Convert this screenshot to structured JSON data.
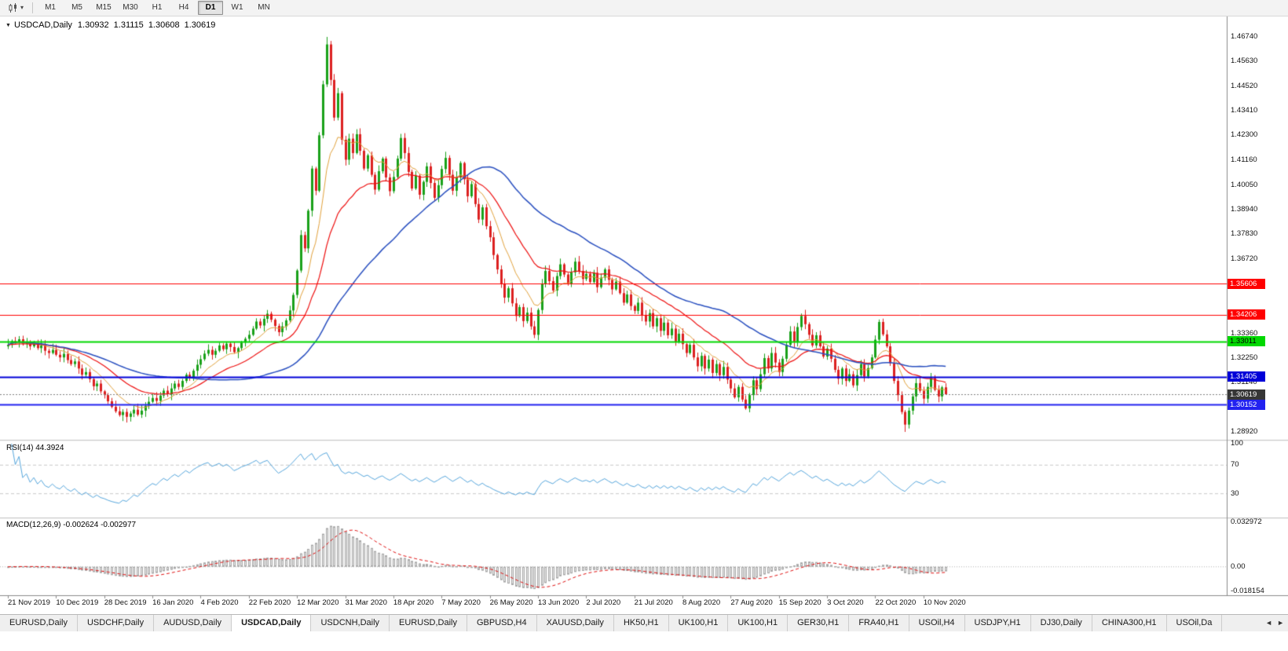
{
  "toolbar": {
    "caret": "▾",
    "timeframes": [
      {
        "label": "M1",
        "active": false
      },
      {
        "label": "M5",
        "active": false
      },
      {
        "label": "M15",
        "active": false
      },
      {
        "label": "M30",
        "active": false
      },
      {
        "label": "H1",
        "active": false
      },
      {
        "label": "H4",
        "active": false
      },
      {
        "label": "D1",
        "active": true
      },
      {
        "label": "W1",
        "active": false
      },
      {
        "label": "MN",
        "active": false
      }
    ]
  },
  "chart": {
    "title": {
      "marker": "▼",
      "symbol": "USDCAD,Daily"
    }
  },
  "chart_data": {
    "type": "candlestick",
    "symbol": "USDCAD",
    "period": "Daily",
    "last_bar": {
      "open": "1.30932",
      "high": "1.31115",
      "low": "1.30608",
      "close": "1.30619"
    },
    "y_axis": {
      "visible_min": 1.28601,
      "visible_max": 1.47519,
      "tick_labels": [
        "1.46740",
        "1.45630",
        "1.44520",
        "1.43410",
        "1.42300",
        "1.41160",
        "1.40050",
        "1.38940",
        "1.37830",
        "1.36720",
        "1.33360",
        "1.32250",
        "1.31140",
        "1.28920"
      ]
    },
    "x_axis": {
      "bars_per_tick": 13,
      "tick_labels": [
        "21 Nov 2019",
        "10 Dec 2019",
        "28 Dec 2019",
        "16 Jan 2020",
        "4 Feb 2020",
        "22 Feb 2020",
        "12 Mar 2020",
        "31 Mar 2020",
        "18 Apr 2020",
        "7 May 2020",
        "26 May 2020",
        "13 Jun 2020",
        "2 Jul 2020",
        "21 Jul 2020",
        "8 Aug 2020",
        "27 Aug 2020",
        "15 Sep 2020",
        "3 Oct 2020",
        "22 Oct 2020",
        "10 Nov 2020"
      ]
    },
    "first_open": 1.3278,
    "closes": [
      1.3285,
      1.3302,
      1.3295,
      1.331,
      1.3288,
      1.3296,
      1.3278,
      1.329,
      1.327,
      1.3282,
      1.3258,
      1.3248,
      1.3262,
      1.324,
      1.3228,
      1.3244,
      1.3216,
      1.3198,
      1.321,
      1.3178,
      1.315,
      1.3162,
      1.313,
      1.3098,
      1.311,
      1.3075,
      1.3058,
      1.303,
      1.3005,
      1.2985,
      1.2968,
      1.2982,
      1.296,
      1.2975,
      1.2992,
      1.297,
      1.2988,
      1.301,
      1.3028,
      1.3045,
      1.3032,
      1.3056,
      1.3078,
      1.3062,
      1.3088,
      1.311,
      1.3095,
      1.3122,
      1.315,
      1.3135,
      1.3168,
      1.3195,
      1.322,
      1.3245,
      1.3262,
      1.324,
      1.3258,
      1.3282,
      1.3265,
      1.329,
      1.3275,
      1.3252,
      1.327,
      1.3295,
      1.3312,
      1.333,
      1.3358,
      1.339,
      1.3372,
      1.3402,
      1.3425,
      1.3398,
      1.337,
      1.3342,
      1.3368,
      1.3395,
      1.344,
      1.351,
      1.362,
      1.378,
      1.372,
      1.389,
      1.408,
      1.398,
      1.423,
      1.446,
      1.464,
      1.448,
      1.431,
      1.442,
      1.421,
      1.412,
      1.4215,
      1.415,
      1.4235,
      1.416,
      1.408,
      1.414,
      1.4052,
      1.3985,
      1.4068,
      1.4125,
      1.404,
      1.3978,
      1.4042,
      1.4125,
      1.4218,
      1.415,
      1.4065,
      1.399,
      1.4048,
      1.3962,
      1.402,
      1.409,
      1.4015,
      1.3948,
      1.4005,
      1.4078,
      1.4128,
      1.4052,
      1.398,
      1.404,
      1.4105,
      1.4032,
      1.3955,
      1.401,
      1.392,
      1.385,
      1.3905,
      1.382,
      1.377,
      1.369,
      1.3625,
      1.356,
      1.3498,
      1.354,
      1.3472,
      1.3415,
      1.3455,
      1.3392,
      1.343,
      1.3368,
      1.333,
      1.3442,
      1.356,
      1.3618,
      1.3572,
      1.353,
      1.3595,
      1.3648,
      1.3602,
      1.3558,
      1.3612,
      1.366,
      1.3618,
      1.3582,
      1.3605,
      1.3568,
      1.361,
      1.3545,
      1.3588,
      1.3625,
      1.3578,
      1.3535,
      1.357,
      1.3518,
      1.3475,
      1.3512,
      1.346,
      1.3438,
      1.3475,
      1.3418,
      1.339,
      1.3428,
      1.3368,
      1.3405,
      1.3348,
      1.3385,
      1.3328,
      1.3358,
      1.3298,
      1.3335,
      1.3288,
      1.3248,
      1.3285,
      1.3228,
      1.3188,
      1.3235,
      1.3178,
      1.3218,
      1.3158,
      1.3198,
      1.3148,
      1.3185,
      1.3128,
      1.3088,
      1.3048,
      1.3095,
      1.3038,
      1.2998,
      1.3058,
      1.3125,
      1.3085,
      1.3152,
      1.3225,
      1.3178,
      1.3248,
      1.3205,
      1.3162,
      1.3222,
      1.3285,
      1.3345,
      1.3298,
      1.3365,
      1.3415,
      1.3378,
      1.333,
      1.3282,
      1.3328,
      1.3278,
      1.3232,
      1.3268,
      1.3222,
      1.3172,
      1.3132,
      1.3178,
      1.3122,
      1.3152,
      1.3102,
      1.3148,
      1.3198,
      1.3142,
      1.318,
      1.3228,
      1.3308,
      1.3388,
      1.3332,
      1.3278,
      1.3202,
      1.3122,
      1.3058,
      1.2982,
      1.2925,
      1.2988,
      1.3052,
      1.3112,
      1.3078,
      1.3042,
      1.3095,
      1.3135,
      1.3082,
      1.3052,
      1.3093,
      1.30619
    ],
    "wick_overrides": {
      "86": {
        "high": 1.4674
      },
      "142": {
        "low": 1.3315
      },
      "199": {
        "low": 1.2992
      },
      "242": {
        "low": 1.2892
      },
      "253": {
        "high": 1.31115,
        "low": 1.30608
      }
    },
    "candle_colors": {
      "up": "#19A119",
      "down": "#DC2020"
    },
    "horizontal_lines": [
      {
        "label": "1.35606",
        "price": 1.35606,
        "color": "#FF0000",
        "text_color": "#FFFFFF",
        "width": 1
      },
      {
        "label": "1.34206",
        "price": 1.34206,
        "color": "#FF0000",
        "text_color": "#FFFFFF",
        "width": 1
      },
      {
        "label": "1.33011",
        "price": 1.33011,
        "color": "#00D800",
        "text_color": "#000000",
        "width": 2
      },
      {
        "label": "1.31405",
        "price": 1.31405,
        "color": "#0000D8",
        "text_color": "#FFFFFF",
        "width": 2
      },
      {
        "label": "1.30152",
        "price": 1.30152,
        "color": "#2222F0",
        "text_color": "#FFFFFF",
        "width": 2
      }
    ],
    "current_price_line": {
      "label": "1.30619",
      "price": 1.30619,
      "line_color": "#808080",
      "box_color": "#363636",
      "text_color": "#FFFFFF"
    },
    "indicators": {
      "moving_averages": [
        {
          "name": "fast ema",
          "period": 10,
          "type": "ema",
          "color": "#E2A23C",
          "width": 1
        },
        {
          "name": "medium ema",
          "period": 25,
          "type": "ema",
          "color": "#EE1111",
          "width": 1.2
        },
        {
          "name": "slow sma",
          "period": 50,
          "type": "sma",
          "color": "#2A50C0",
          "width": 1.5
        }
      ],
      "rsi": {
        "label": "RSI(14) 44.3924",
        "period": 14,
        "current": 44.3924,
        "scale": [
          0,
          100
        ],
        "levels": [
          70,
          30
        ],
        "axis_labels": [
          "100",
          "70",
          "30"
        ],
        "line_color": "#57A7DD",
        "level_line_color": "#C8C8C8"
      },
      "macd": {
        "label": "MACD(12,26,9) -0.002624 -0.002977",
        "fast": 12,
        "slow": 26,
        "signal": 9,
        "current_macd": -0.002624,
        "current_signal": -0.002977,
        "scale_max": 0.032972,
        "scale_min": -0.018154,
        "axis_labels": [
          "0.032972",
          "0.00",
          "-0.018154"
        ],
        "signal_color": "#E01010",
        "histogram_fill": "#ECECEC",
        "histogram_border": "#A6A6A6"
      }
    }
  },
  "tabs": {
    "scroll_left_icon": "◄",
    "scroll_right_icon": "►",
    "items": [
      {
        "label": "EURUSD,Daily",
        "active": false
      },
      {
        "label": "USDCHF,Daily",
        "active": false
      },
      {
        "label": "AUDUSD,Daily",
        "active": false
      },
      {
        "label": "USDCAD,Daily",
        "active": true
      },
      {
        "label": "USDCNH,Daily",
        "active": false
      },
      {
        "label": "EURUSD,Daily",
        "active": false
      },
      {
        "label": "GBPUSD,H4",
        "active": false
      },
      {
        "label": "XAUUSD,Daily",
        "active": false
      },
      {
        "label": "HK50,H1",
        "active": false
      },
      {
        "label": "UK100,H1",
        "active": false
      },
      {
        "label": "UK100,H1",
        "active": false
      },
      {
        "label": "GER30,H1",
        "active": false
      },
      {
        "label": "FRA40,H1",
        "active": false
      },
      {
        "label": "USOil,H4",
        "active": false
      },
      {
        "label": "USDJPY,H1",
        "active": false
      },
      {
        "label": "DJ30,Daily",
        "active": false
      },
      {
        "label": "CHINA300,H1",
        "active": false
      },
      {
        "label": "USOil,Da",
        "active": false
      }
    ]
  }
}
